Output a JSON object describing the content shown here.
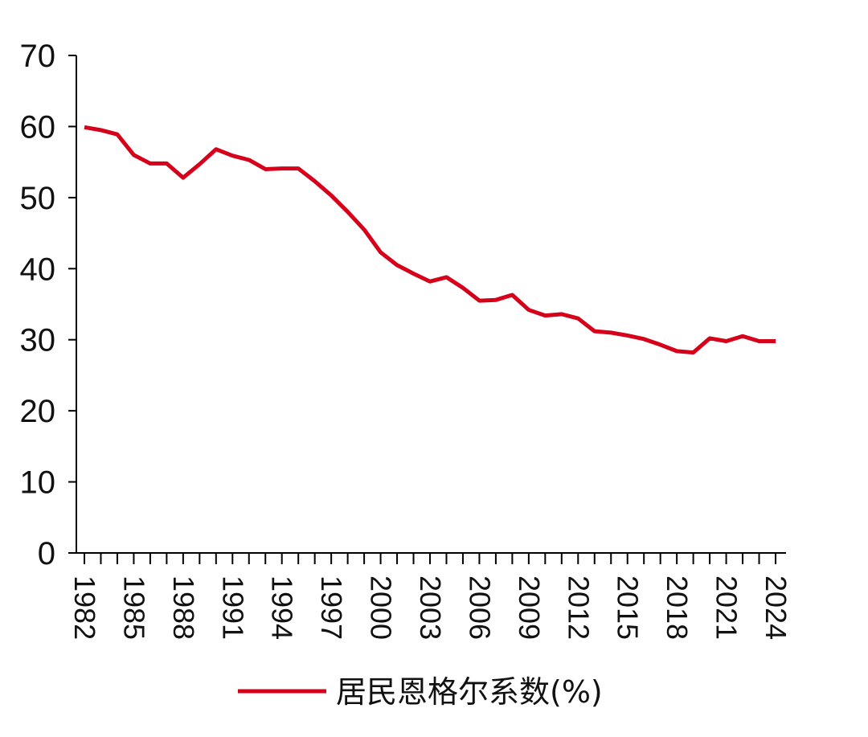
{
  "chart_data": {
    "type": "line",
    "title": "",
    "xlabel": "",
    "ylabel": "",
    "x": [
      1982,
      1983,
      1984,
      1985,
      1986,
      1987,
      1988,
      1989,
      1990,
      1991,
      1992,
      1993,
      1994,
      1995,
      1996,
      1997,
      1998,
      1999,
      2000,
      2001,
      2002,
      2003,
      2004,
      2005,
      2006,
      2007,
      2008,
      2009,
      2010,
      2011,
      2012,
      2013,
      2014,
      2015,
      2016,
      2017,
      2018,
      2019,
      2020,
      2021,
      2022,
      2023,
      2024
    ],
    "series": [
      {
        "name": "居民恩格尔系数(%)",
        "color": "#d7001b",
        "values": [
          59.9,
          59.5,
          58.9,
          56.0,
          54.8,
          54.8,
          52.8,
          54.7,
          56.8,
          55.9,
          55.3,
          54.0,
          54.1,
          54.1,
          52.3,
          50.3,
          48.0,
          45.5,
          42.3,
          40.5,
          39.3,
          38.2,
          38.8,
          37.3,
          35.5,
          35.6,
          36.3,
          34.2,
          33.4,
          33.6,
          33.0,
          31.2,
          31.0,
          30.6,
          30.1,
          29.3,
          28.4,
          28.2,
          30.2,
          29.8,
          30.5,
          29.8,
          29.8
        ]
      }
    ],
    "ylim": [
      0,
      70
    ],
    "yticks": [
      0,
      10,
      20,
      30,
      40,
      50,
      60,
      70
    ],
    "xtick_labels": [
      "1982",
      "1985",
      "1988",
      "1991",
      "1994",
      "1997",
      "2000",
      "2003",
      "2006",
      "2009",
      "2012",
      "2015",
      "2018",
      "2021",
      "2024"
    ],
    "grid": false,
    "legend_position": "bottom-center"
  }
}
